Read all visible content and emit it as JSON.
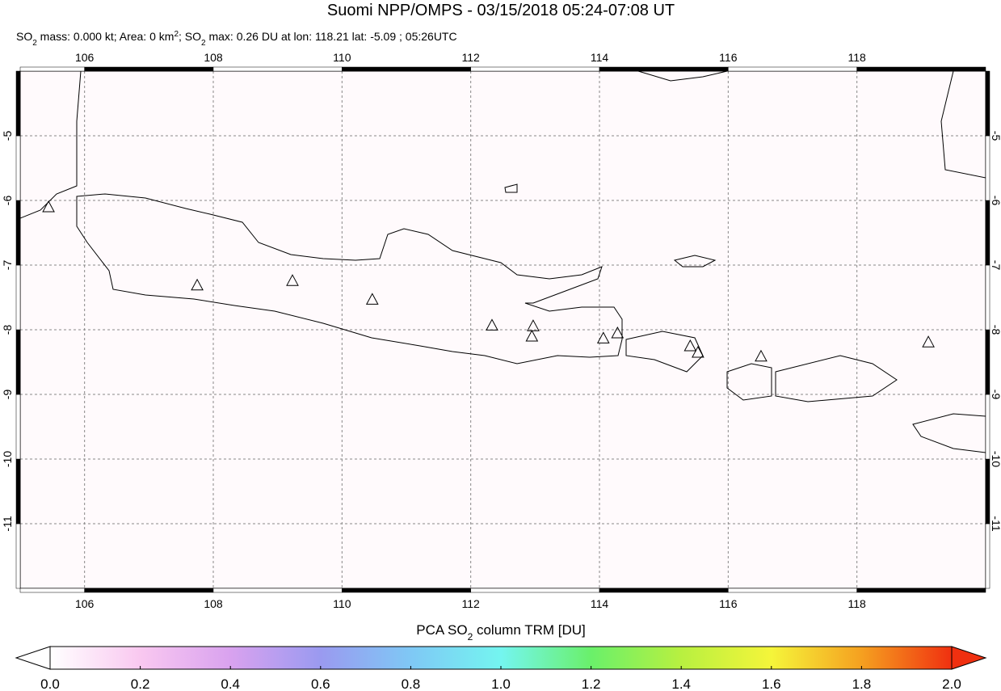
{
  "chart_data": {
    "type": "map",
    "title": "Suomi NPP/OMPS - 03/15/2018 05:24-07:08 UT",
    "subtitle_parts": [
      "SO",
      "2",
      " mass: 0.000 kt; Area: 0 km",
      "2",
      "; SO",
      "2",
      " max: 0.26 DU at lon: 118.21 lat: -5.09 ; 05:26UTC"
    ],
    "xlim": [
      105,
      120
    ],
    "ylim": [
      -12,
      -4
    ],
    "xticks": [
      106,
      108,
      110,
      112,
      114,
      116,
      118
    ],
    "yticks": [
      -11,
      -10,
      -9,
      -8,
      -7,
      -6,
      -5
    ],
    "grid": true,
    "volcanoes": {
      "lon": [
        105.44,
        107.75,
        109.23,
        110.47,
        112.33,
        112.97,
        112.95,
        114.06,
        114.28,
        115.41,
        115.53,
        116.51,
        119.11
      ],
      "lat": [
        -6.1,
        -7.31,
        -7.24,
        -7.53,
        -7.93,
        -7.94,
        -8.1,
        -8.13,
        -8.05,
        -8.25,
        -8.35,
        -8.41,
        -8.19
      ]
    },
    "colorbar": {
      "label_parts": [
        "PCA SO",
        "2",
        " column TRM [DU]"
      ],
      "lim": [
        0,
        2
      ],
      "ticks": [
        {
          "value": 0,
          "label": "0.0"
        },
        {
          "value": 0.2,
          "label": "0.2"
        },
        {
          "value": 0.4,
          "label": "0.4"
        },
        {
          "value": 0.6,
          "label": "0.6"
        },
        {
          "value": 0.8,
          "label": "0.8"
        },
        {
          "value": 1,
          "label": "1.0"
        },
        {
          "value": 1.2,
          "label": "1.2"
        },
        {
          "value": 1.4,
          "label": "1.4"
        },
        {
          "value": 1.6,
          "label": "1.6"
        },
        {
          "value": 1.8,
          "label": "1.8"
        },
        {
          "value": 2,
          "label": "2.0"
        }
      ],
      "colors": [
        "#ffffff",
        "#f9c8f0",
        "#d9a2ef",
        "#9a9af0",
        "#7fc8f5",
        "#74f5f0",
        "#6af06a",
        "#b8f040",
        "#f5f53a",
        "#f5a020",
        "#f03010"
      ]
    }
  }
}
